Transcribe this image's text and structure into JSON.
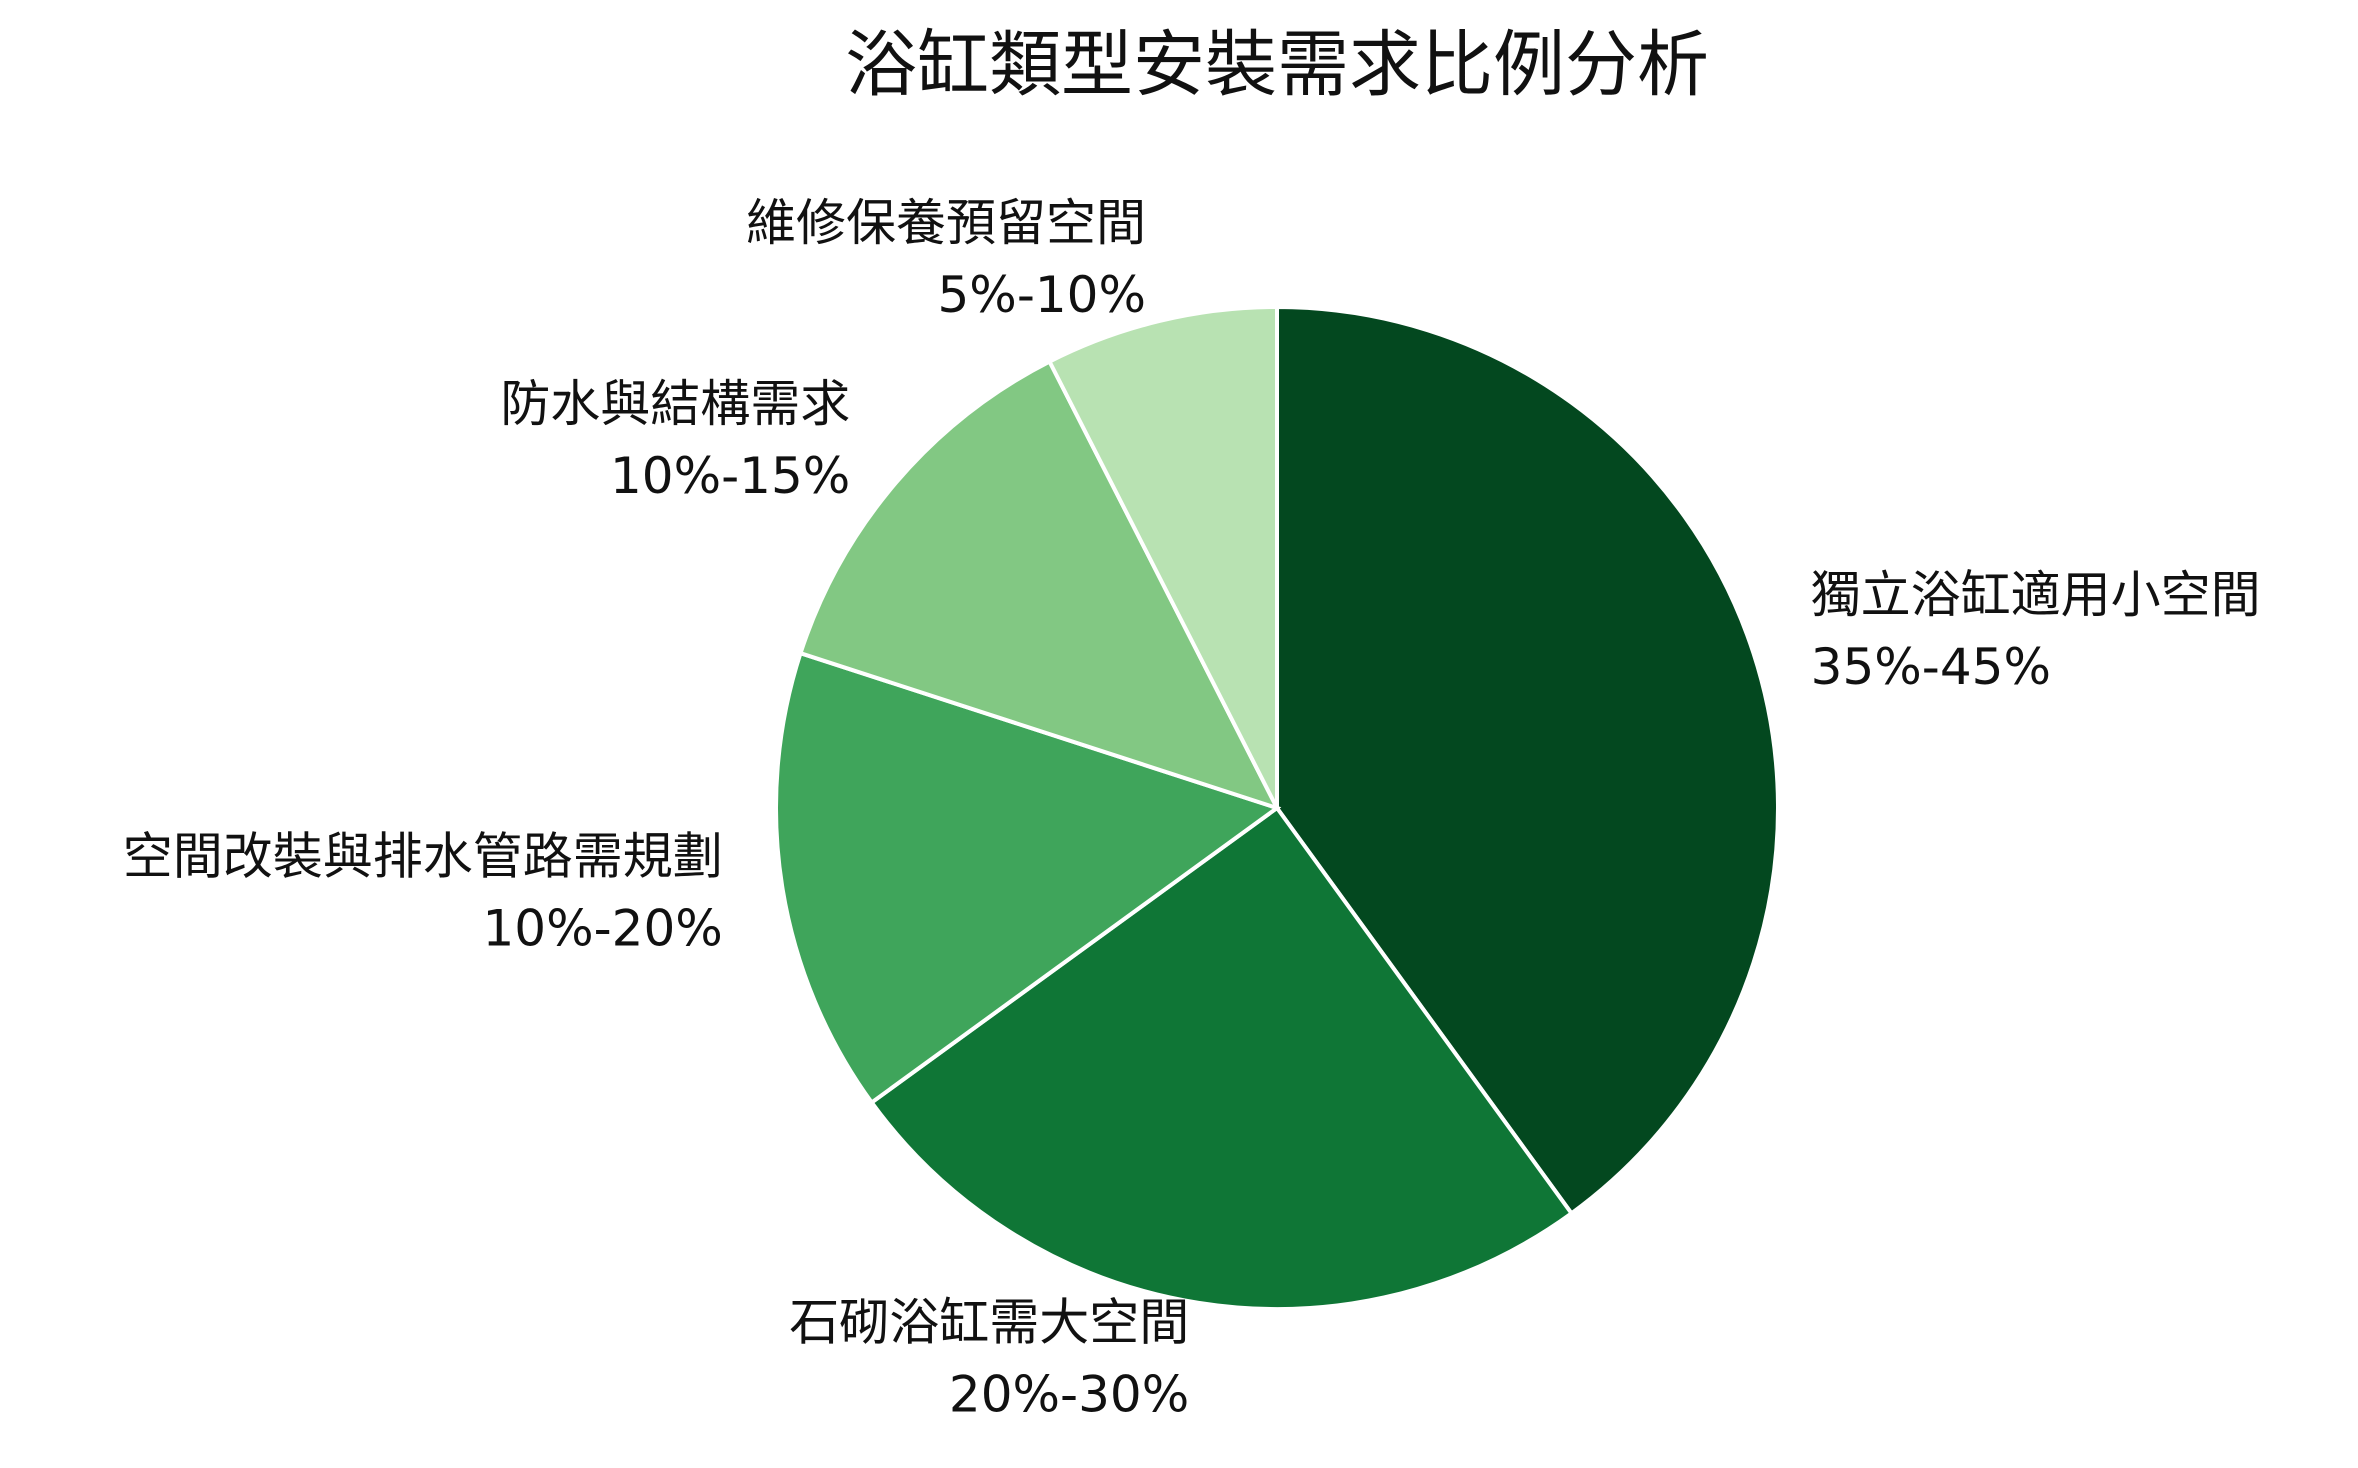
{
  "chart_data": {
    "type": "pie",
    "title": "浴缸類型安裝需求比例分析",
    "categories": [
      "獨立浴缸適用小空間",
      "石砌浴缸需大空間",
      "空間改裝與排水管路需規劃",
      "防水與結構需求",
      "維修保養預留空間"
    ],
    "ranges": [
      "35%-45%",
      "20%-30%",
      "10%-20%",
      "10%-15%",
      "5%-10%"
    ],
    "values": [
      40,
      25,
      15,
      12.5,
      7.5
    ],
    "colors": [
      "#03481f",
      "#0f7636",
      "#3fa55b",
      "#82c883",
      "#b8e2b2"
    ]
  }
}
